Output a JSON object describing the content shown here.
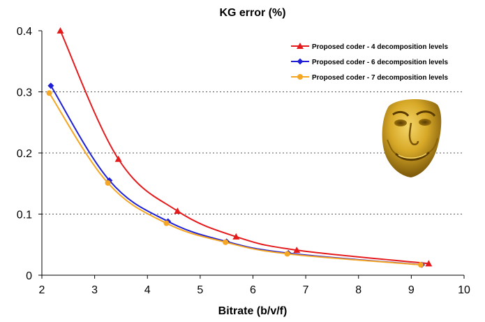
{
  "chart_data": {
    "type": "line",
    "title": "KG error (%)",
    "xlabel": "Bitrate (b/v/f)",
    "ylabel": "",
    "xlim": [
      2,
      10
    ],
    "ylim": [
      0,
      0.4
    ],
    "xticks": [
      "2",
      "3",
      "4",
      "5",
      "6",
      "7",
      "8",
      "9",
      "10"
    ],
    "yticks": [
      "0",
      "0.1",
      "0.2",
      "0.3",
      "0.4"
    ],
    "grid": "horizontal-dotted",
    "legend_position": "top-right",
    "series": [
      {
        "name": "Proposed coder - 4 decomposition levels",
        "color": "#e41a1c",
        "marker": "triangle",
        "x": [
          2.35,
          3.45,
          4.57,
          5.68,
          6.83,
          9.33
        ],
        "y": [
          0.4,
          0.19,
          0.105,
          0.063,
          0.041,
          0.019
        ]
      },
      {
        "name": "Proposed coder - 6 decomposition levels",
        "color": "#1f1fd6",
        "marker": "diamond",
        "x": [
          2.17,
          3.28,
          4.39,
          5.5,
          6.67,
          9.2
        ],
        "y": [
          0.31,
          0.155,
          0.088,
          0.055,
          0.036,
          0.017
        ]
      },
      {
        "name": "Proposed coder - 7 decomposition levels",
        "color": "#f5a623",
        "marker": "circle",
        "x": [
          2.14,
          3.25,
          4.36,
          5.48,
          6.65,
          9.18
        ],
        "y": [
          0.298,
          0.151,
          0.085,
          0.054,
          0.035,
          0.017
        ]
      }
    ]
  },
  "inset": {
    "icon": "face-mask-icon",
    "color_light": "#e8c04a",
    "color_dark": "#6b4a05"
  }
}
